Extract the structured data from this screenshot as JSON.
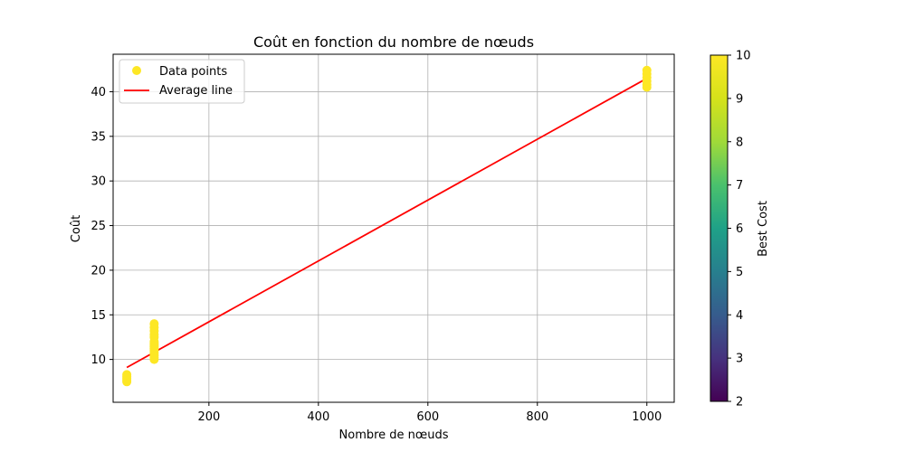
{
  "chart_data": {
    "type": "scatter",
    "title": "Coût en fonction du nombre de nœuds",
    "xlabel": "Nombre de nœuds",
    "ylabel": "Coût",
    "xlim": [
      25,
      1050
    ],
    "ylim": [
      5.2,
      44.2
    ],
    "xticks": [
      200,
      400,
      600,
      800,
      1000
    ],
    "yticks": [
      10,
      15,
      20,
      25,
      30,
      35,
      40
    ],
    "grid": true,
    "legend_position": "top-left",
    "series": [
      {
        "name": "Data points",
        "kind": "scatter",
        "color": "#fde725",
        "x": [
          50,
          50,
          50,
          50,
          50,
          100,
          100,
          100,
          100,
          100,
          100,
          100,
          100,
          100,
          100,
          100,
          100,
          100,
          100,
          100,
          100,
          1000,
          1000,
          1000,
          1000,
          1000,
          1000
        ],
        "y": [
          7.5,
          7.7,
          7.9,
          8.1,
          8.3,
          10.0,
          10.2,
          10.4,
          10.6,
          10.8,
          11.0,
          11.2,
          11.4,
          11.6,
          11.8,
          12.0,
          12.5,
          12.8,
          13.2,
          13.6,
          14.0,
          40.5,
          40.8,
          41.2,
          41.6,
          42.0,
          42.4
        ]
      },
      {
        "name": "Average line",
        "kind": "line",
        "color": "#ff0000",
        "x": [
          50,
          1000
        ],
        "y": [
          9.1,
          41.5
        ]
      }
    ],
    "colorbar": {
      "label": "Best Cost",
      "min": 2,
      "max": 10,
      "ticks": [
        2,
        3,
        4,
        5,
        6,
        7,
        8,
        9,
        10
      ],
      "colormap": "viridis"
    }
  }
}
